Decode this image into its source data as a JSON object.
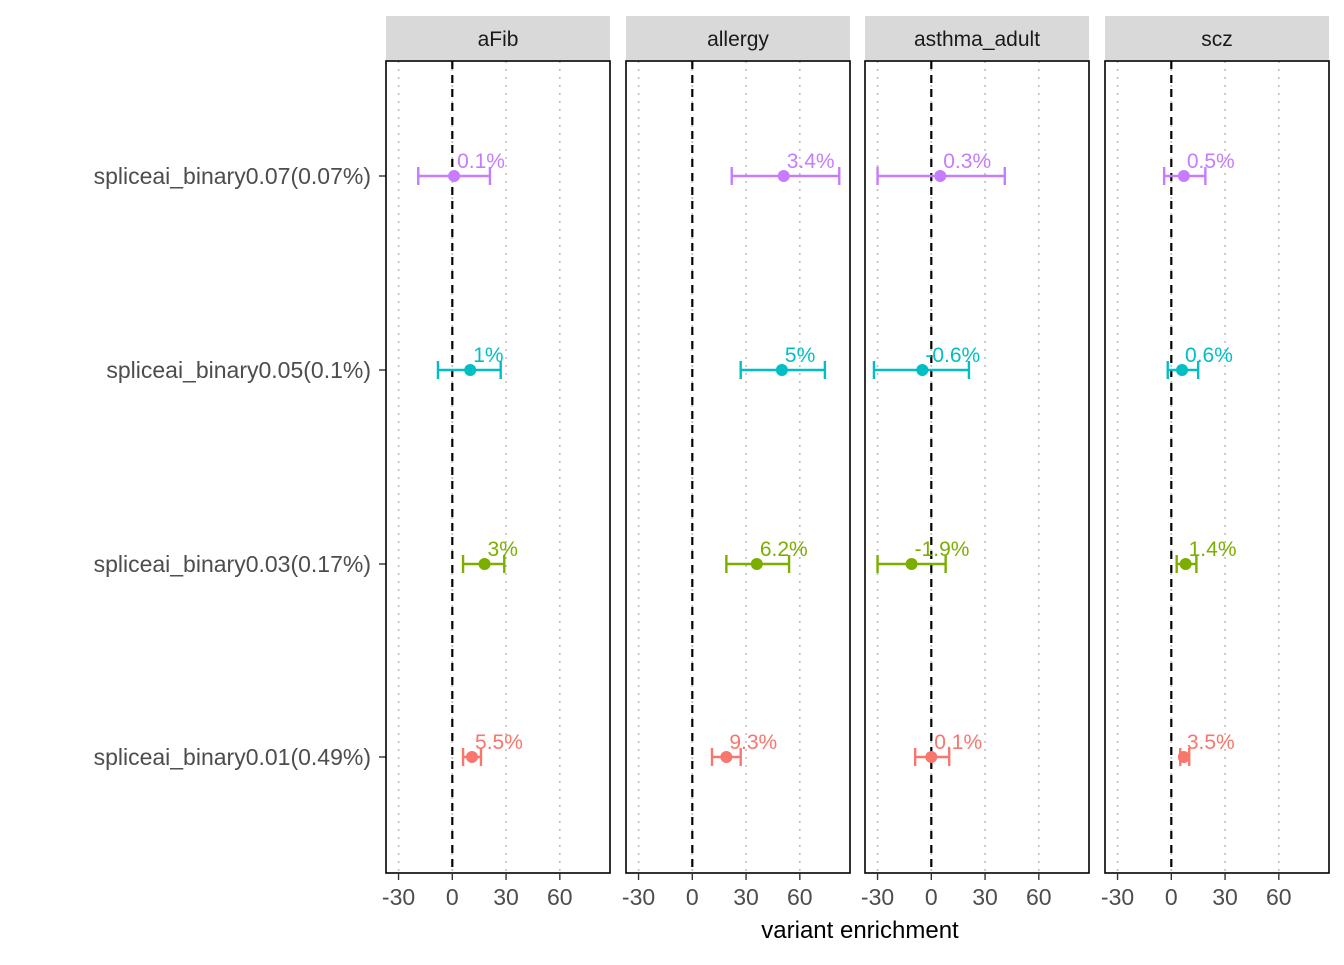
{
  "chart_data": {
    "type": "forest",
    "xlabel": "variant enrichment",
    "xlim": [
      -37,
      88
    ],
    "xticks": [
      -30,
      0,
      30,
      60
    ],
    "xtick_labels": [
      "-30",
      "0",
      "30",
      "60"
    ],
    "reference_line": 0,
    "categories": [
      "spliceai_binary0.07(0.07%)",
      "spliceai_binary0.05(0.1%)",
      "spliceai_binary0.03(0.17%)",
      "spliceai_binary0.01(0.49%)"
    ],
    "category_colors": [
      "#C77CFF",
      "#00BFC4",
      "#7CAE00",
      "#F8766D"
    ],
    "panels": [
      {
        "title": "aFib",
        "points": [
          {
            "estimate": 1,
            "lower": -19,
            "upper": 21,
            "label": "0.1%"
          },
          {
            "estimate": 10,
            "lower": -8,
            "upper": 27,
            "label": "1%"
          },
          {
            "estimate": 18,
            "lower": 6,
            "upper": 29,
            "label": "3%"
          },
          {
            "estimate": 11,
            "lower": 6,
            "upper": 16,
            "label": "5.5%"
          }
        ]
      },
      {
        "title": "allergy",
        "points": [
          {
            "estimate": 51,
            "lower": 22,
            "upper": 82,
            "label": "3.4%"
          },
          {
            "estimate": 50,
            "lower": 27,
            "upper": 74,
            "label": "5%"
          },
          {
            "estimate": 36,
            "lower": 19,
            "upper": 54,
            "label": "6.2%"
          },
          {
            "estimate": 19,
            "lower": 11,
            "upper": 27,
            "label": "9.3%"
          }
        ]
      },
      {
        "title": "asthma_adult",
        "points": [
          {
            "estimate": 5,
            "lower": -30,
            "upper": 41,
            "label": "0.3%"
          },
          {
            "estimate": -5,
            "lower": -32,
            "upper": 21,
            "label": "-0.6%"
          },
          {
            "estimate": -11,
            "lower": -30,
            "upper": 8,
            "label": "-1.9%"
          },
          {
            "estimate": 0,
            "lower": -9,
            "upper": 10,
            "label": "0.1%"
          }
        ]
      },
      {
        "title": "scz",
        "points": [
          {
            "estimate": 7,
            "lower": -4,
            "upper": 19,
            "label": "0.5%"
          },
          {
            "estimate": 6,
            "lower": -2,
            "upper": 15,
            "label": "0.6%"
          },
          {
            "estimate": 8,
            "lower": 3,
            "upper": 14,
            "label": "1.4%"
          },
          {
            "estimate": 7,
            "lower": 5,
            "upper": 10,
            "label": "3.5%"
          }
        ]
      }
    ]
  }
}
